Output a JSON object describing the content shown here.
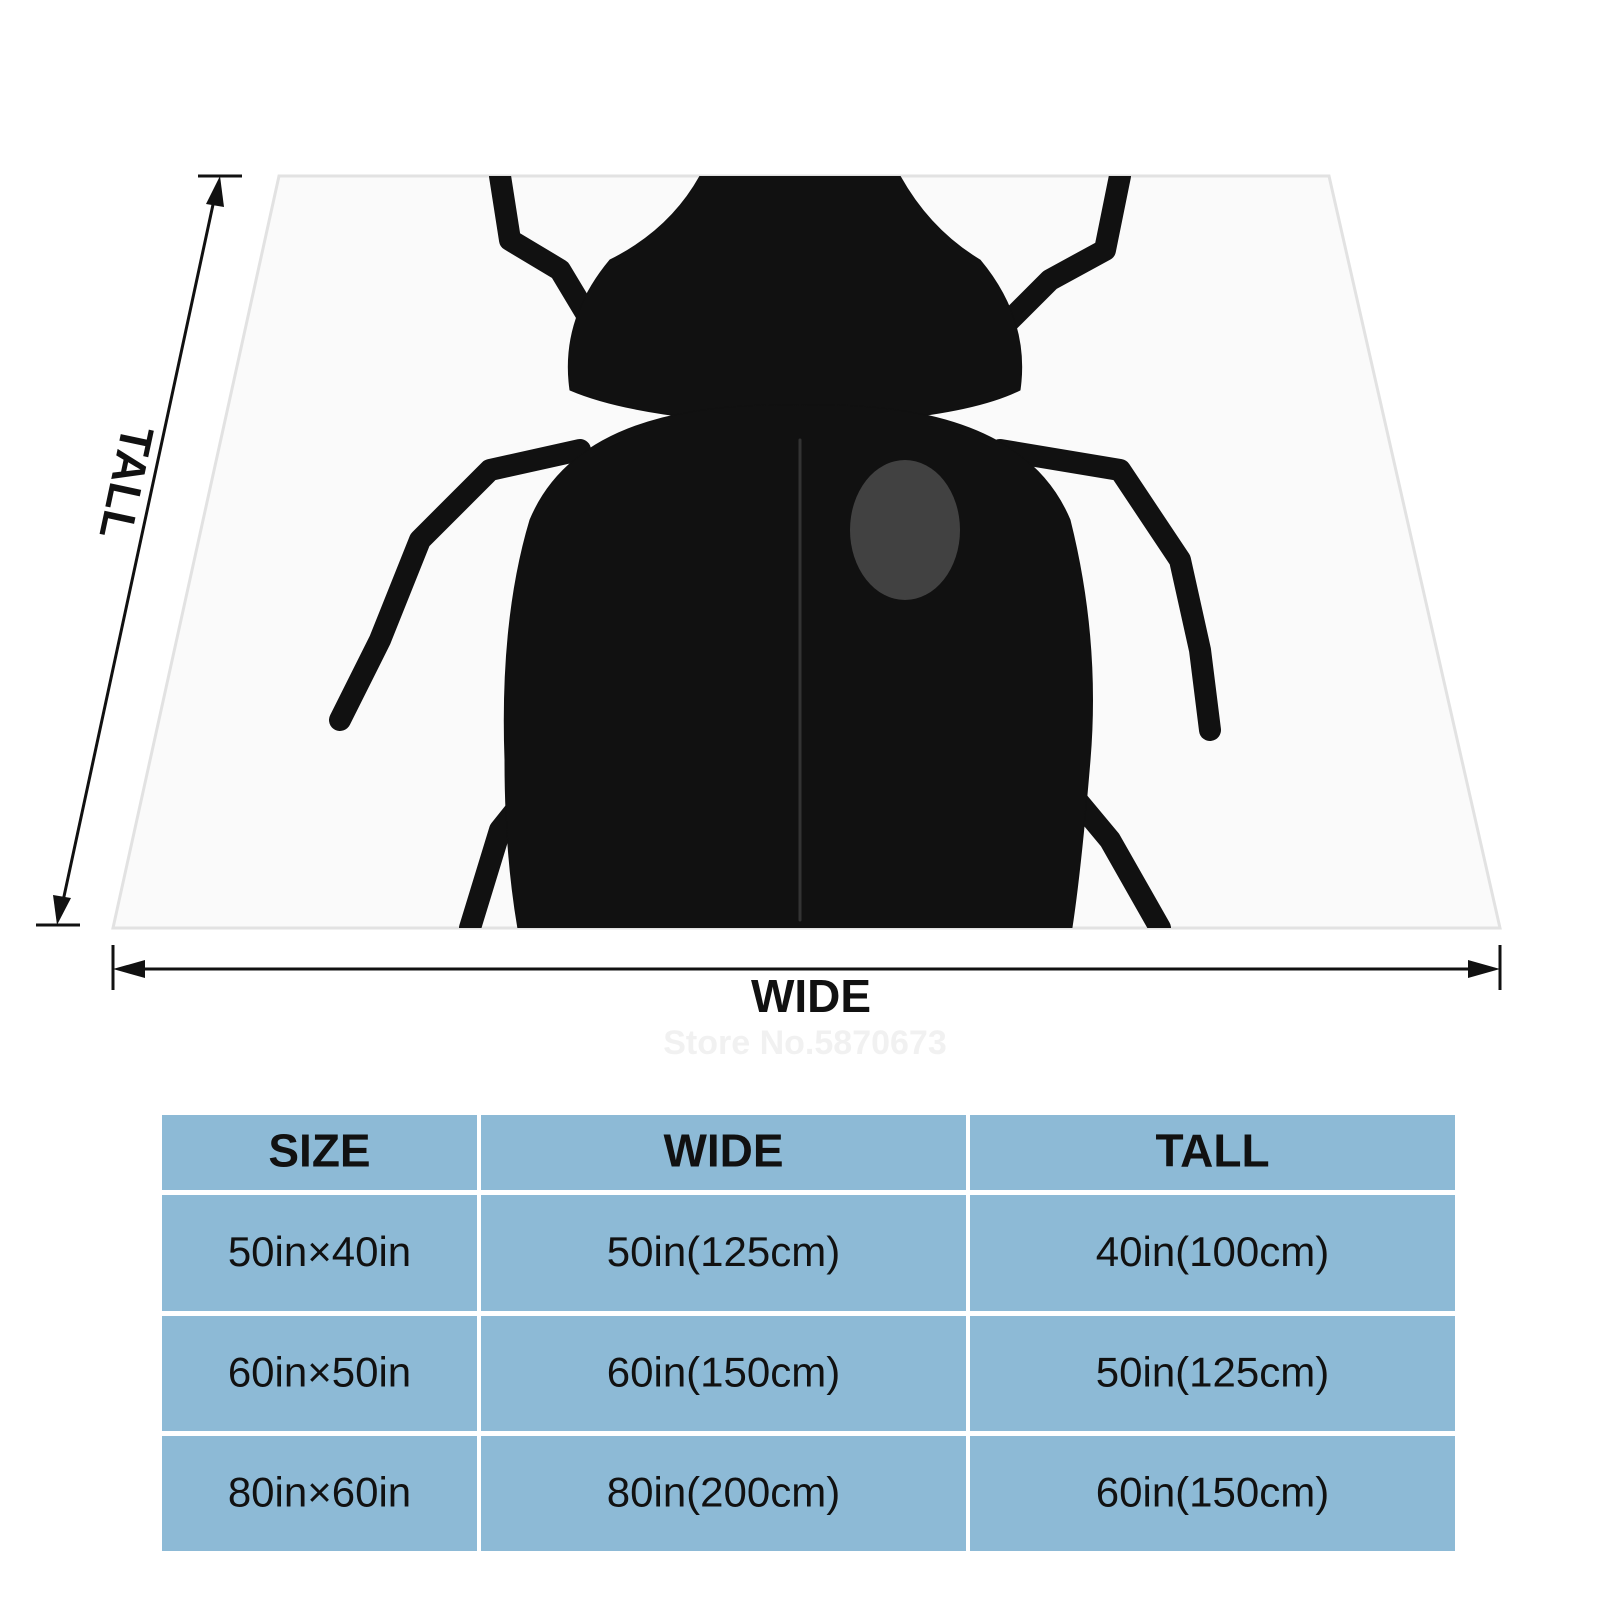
{
  "dimension_labels": {
    "tall": "TALL",
    "wide": "WIDE"
  },
  "watermark": "Store No.5870673",
  "table": {
    "header": [
      "SIZE",
      "WIDE",
      "TALL"
    ],
    "rows": [
      [
        "50in×40in",
        "50in(125cm)",
        "40in(100cm)"
      ],
      [
        "60in×50in",
        "60in(150cm)",
        "50in(125cm)"
      ],
      [
        "80in×60in",
        "80in(200cm)",
        "60in(150cm)"
      ]
    ]
  }
}
